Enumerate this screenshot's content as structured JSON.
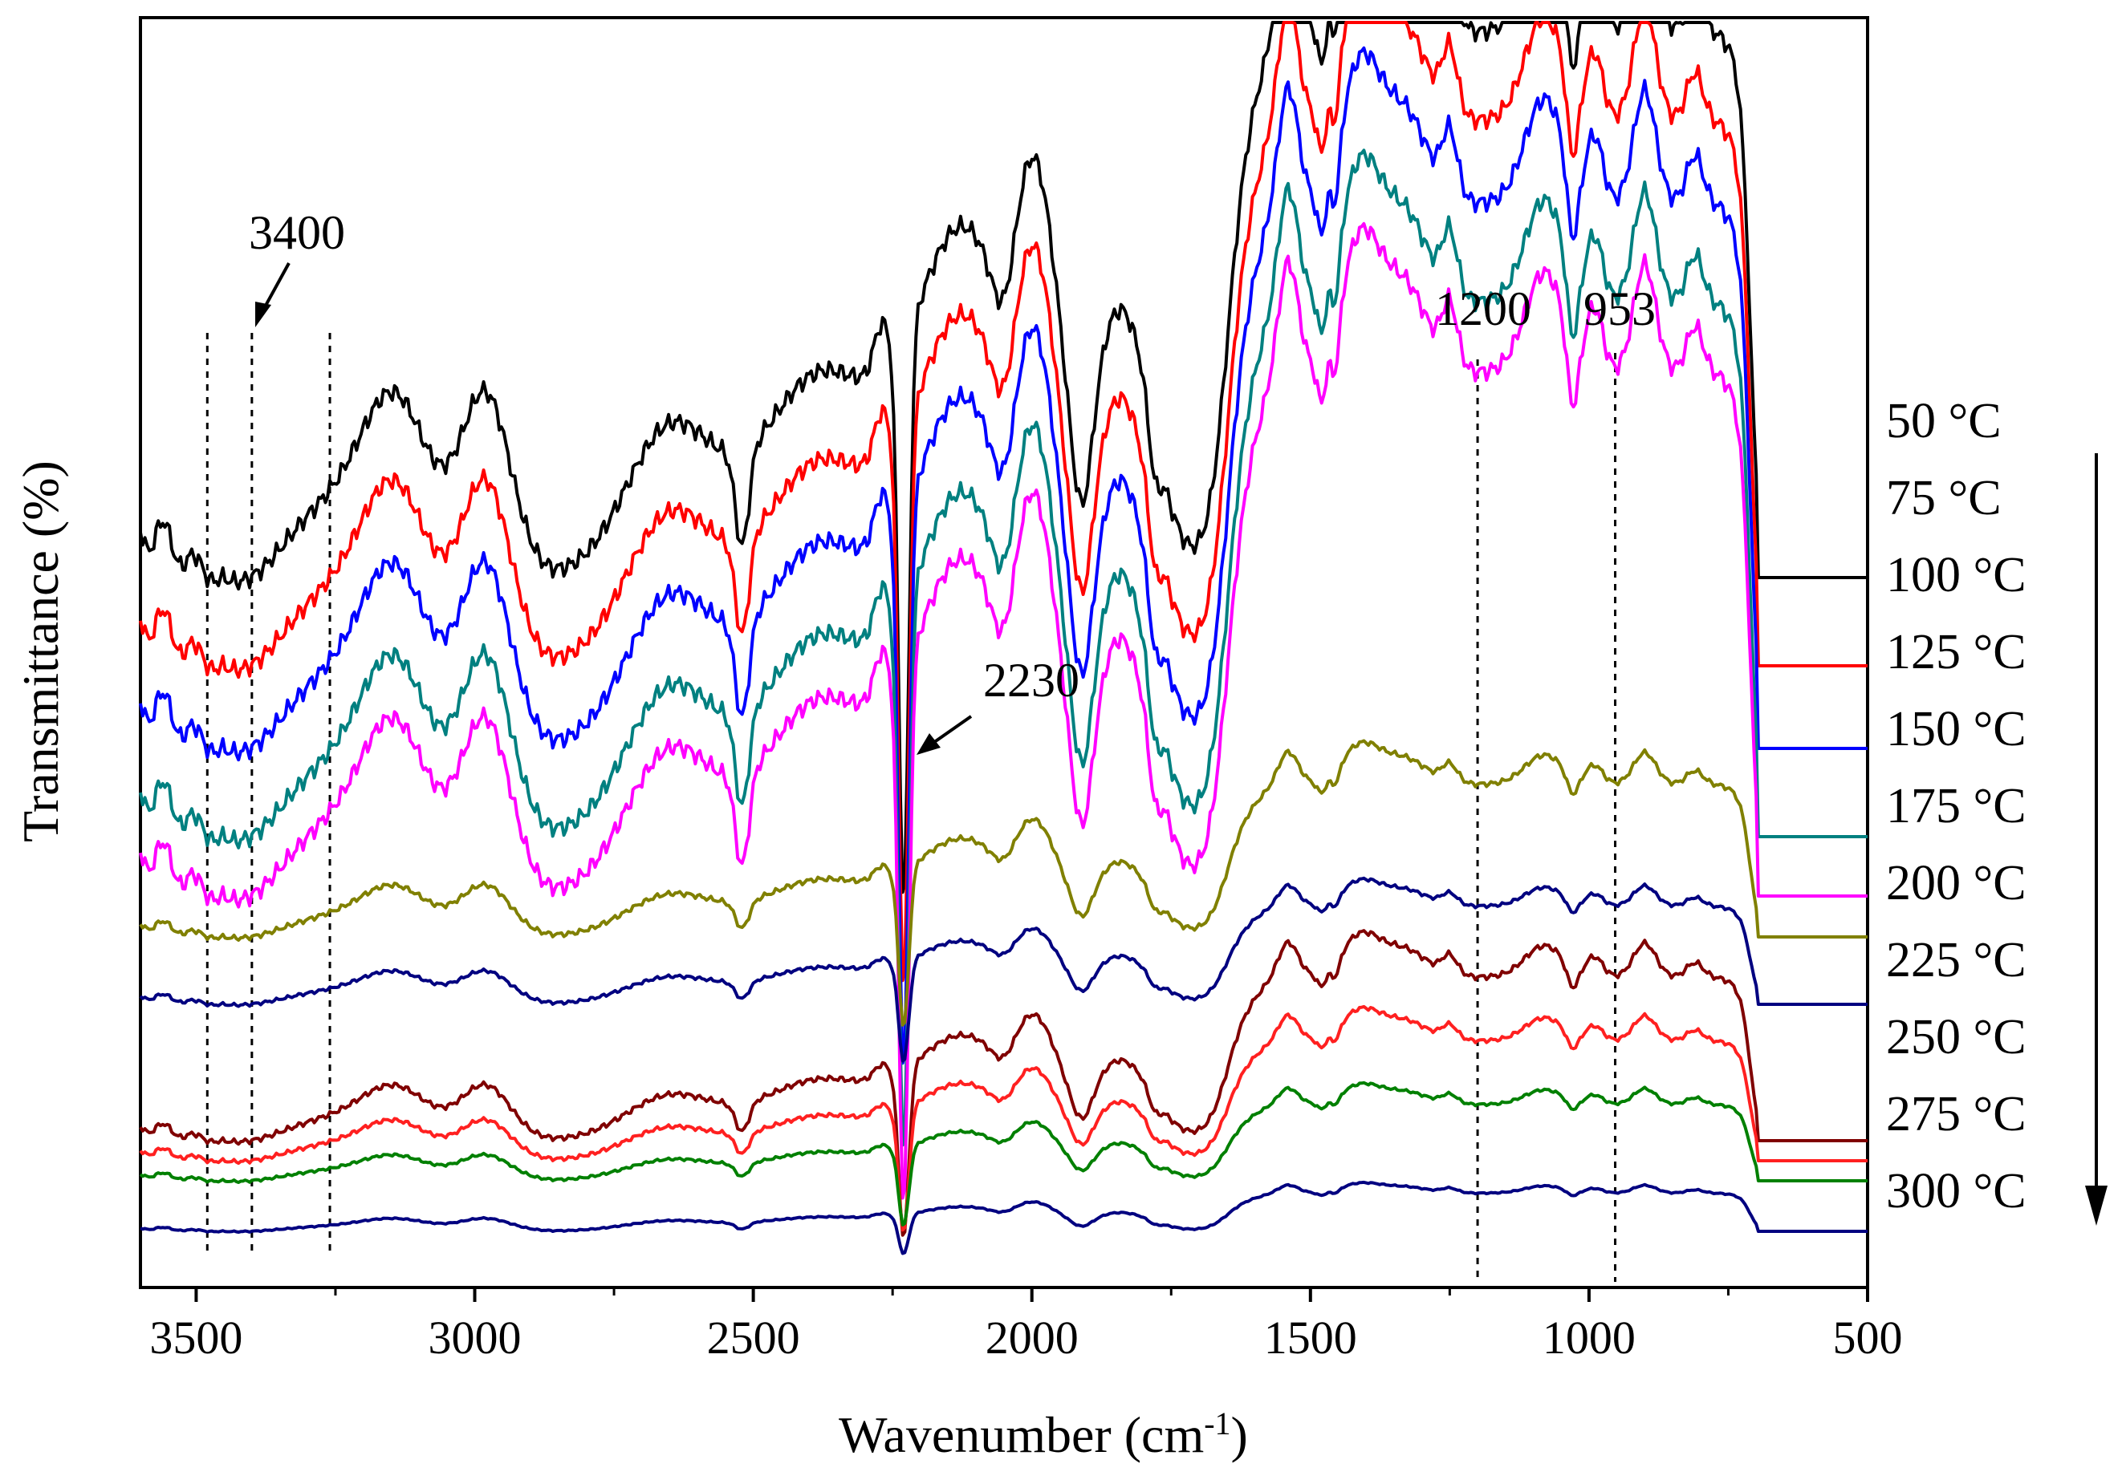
{
  "chart_data": {
    "type": "line",
    "title": "",
    "xlabel": "Wavenumber (cm",
    "xlabel_sup": "-1",
    "xlabel_end": ")",
    "ylabel": "Transmittance (%)",
    "xlim": [
      3600,
      500
    ],
    "x_reversed": true,
    "xticks": [
      "3500",
      "3000",
      "2500",
      "2000",
      "1500",
      "1000",
      "500"
    ],
    "xtick_values": [
      3500,
      3000,
      2500,
      2000,
      1500,
      1000,
      500
    ],
    "y_ticks_shown": false,
    "arrow_direction": "down",
    "annotations": [
      {
        "label": "3400",
        "x": 3400,
        "kind": "arrow"
      },
      {
        "label": "2230",
        "x": 2230,
        "kind": "arrow"
      },
      {
        "label": "1200",
        "x": 1200,
        "kind": "dashed-line"
      },
      {
        "label": "953",
        "x": 953,
        "kind": "dashed-line"
      }
    ],
    "reference_lines_x": [
      3480,
      3400,
      3260,
      1200,
      953
    ],
    "series": [
      {
        "name": "50 °C",
        "label": "50 °C",
        "color": "#000000",
        "baseline": 720,
        "amp": 1.0
      },
      {
        "name": "75 °C",
        "label": "75 °C",
        "color": "#ff0000",
        "baseline": 830,
        "amp": 1.0
      },
      {
        "name": "100 °C",
        "label": "100 °C",
        "color": "#0000ff",
        "baseline": 933,
        "amp": 1.0
      },
      {
        "name": "125 °C",
        "label": "125 °C",
        "color": "#008080",
        "baseline": 1043,
        "amp": 0.98
      },
      {
        "name": "150 °C",
        "label": "150 °C",
        "color": "#ff00ff",
        "baseline": 1117,
        "amp": 0.96
      },
      {
        "name": "175 °C",
        "label": "175 °C",
        "color": "#808000",
        "baseline": 1168,
        "amp": 0.28
      },
      {
        "name": "200 °C",
        "label": "200 °C",
        "color": "#000080",
        "baseline": 1252,
        "amp": 0.18
      },
      {
        "name": "225 °C",
        "label": "225 °C",
        "color": "#800000",
        "baseline": 1422,
        "amp": 0.3
      },
      {
        "name": "250 °C",
        "label": "250 °C",
        "color": "#ff2020",
        "baseline": 1447,
        "amp": 0.22
      },
      {
        "name": "275 °C",
        "label": "275 °C",
        "color": "#008000",
        "baseline": 1472,
        "amp": 0.14
      },
      {
        "name": "300 °C",
        "label": "300 °C",
        "color": "#000080",
        "baseline": 1535,
        "amp": 0.07
      }
    ]
  }
}
